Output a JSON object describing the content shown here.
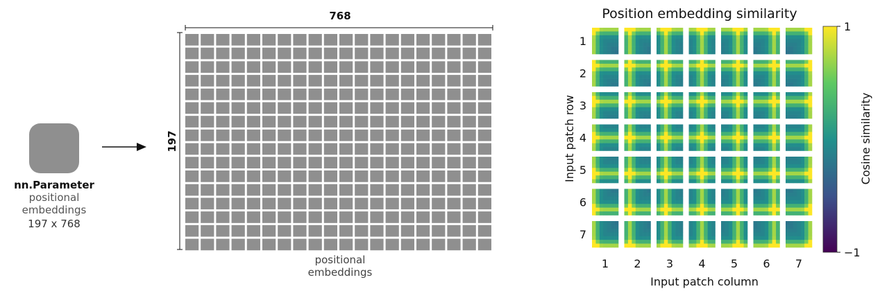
{
  "left_panel": {
    "param_name": "nn.Parameter",
    "param_line1": "positional",
    "param_line2": "embeddings",
    "param_shape": "197 x 768"
  },
  "matrix": {
    "width_label": "768",
    "height_label": "197",
    "caption_line1": "positional",
    "caption_line2": "embeddings",
    "cell_color": "#8f8f8f"
  },
  "chart_data": {
    "type": "heatmap",
    "title": "Position embedding similarity",
    "xlabel": "Input patch column",
    "ylabel": "Input patch row",
    "x_ticks": [
      "1",
      "2",
      "3",
      "4",
      "5",
      "6",
      "7"
    ],
    "y_ticks": [
      "1",
      "2",
      "3",
      "4",
      "5",
      "6",
      "7"
    ],
    "grid_rows": 7,
    "grid_cols": 7,
    "colorbar": {
      "label": "Cosine similarity",
      "max_label": "1",
      "min_label": "−1",
      "vmin": -1,
      "vmax": 1,
      "colormap": "viridis"
    }
  }
}
